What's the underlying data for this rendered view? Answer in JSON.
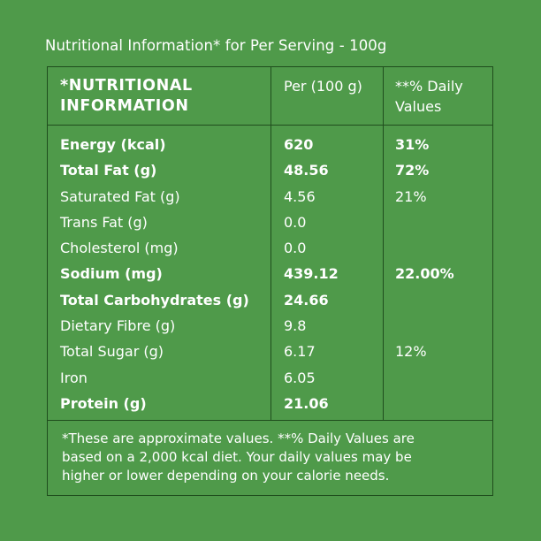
{
  "heading": "Nutritional Information* for Per Serving - 100g",
  "table": {
    "header": {
      "col1_line1": "*NUTRITIONAL",
      "col1_line2": "INFORMATION",
      "col2": "Per (100 g)",
      "col3_line1": "**% Daily",
      "col3_line2": "Values"
    },
    "rows": [
      {
        "name": "Energy (kcal)",
        "value": "620",
        "daily": "31%",
        "bold": true
      },
      {
        "name": "Total Fat (g)",
        "value": "48.56",
        "daily": "72%",
        "bold": true
      },
      {
        "name": "Saturated Fat (g)",
        "value": "4.56",
        "daily": "21%",
        "bold": false
      },
      {
        "name": "Trans Fat (g)",
        "value": "0.0",
        "daily": "",
        "bold": false
      },
      {
        "name": "Cholesterol (mg)",
        "value": "0.0",
        "daily": "",
        "bold": false
      },
      {
        "name": "Sodium (mg)",
        "value": "439.12",
        "daily": "22.00%",
        "bold": true
      },
      {
        "name": "Total Carbohydrates (g)",
        "value": "24.66",
        "daily": "",
        "bold": true
      },
      {
        "name": "Dietary Fibre (g)",
        "value": "9.8",
        "daily": "",
        "bold": false
      },
      {
        "name": "Total Sugar (g)",
        "value": "6.17",
        "daily": "12%",
        "bold": false
      },
      {
        "name": "Iron",
        "value": "6.05",
        "daily": "",
        "bold": false
      },
      {
        "name": "Protein (g)",
        "value": "21.06",
        "daily": "",
        "bold": true
      }
    ]
  },
  "footer": {
    "line1": "*These are approximate values.  **% Daily Values are",
    "line2": "based on a 2,000 kcal diet. Your daily values may be",
    "line3": "higher or lower depending on your calorie needs."
  },
  "colors": {
    "background": "#4f9a4a",
    "border": "#1f4d1d",
    "text": "#ffffff"
  }
}
